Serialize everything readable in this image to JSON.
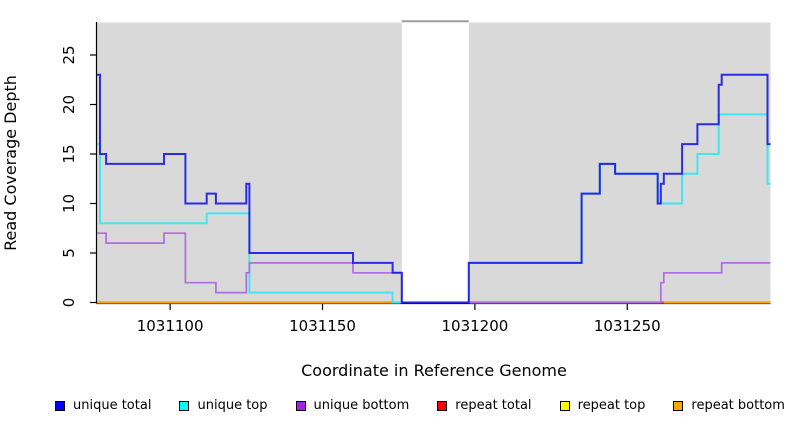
{
  "chart_data": {
    "type": "line",
    "subtype": "step-after-coverage-plot",
    "title": "",
    "xlabel": "Coordinate in Reference Genome",
    "ylabel": "Read Coverage Depth",
    "xlim": [
      1031076,
      1031297
    ],
    "ylim": [
      0,
      28.4
    ],
    "x_ticks": [
      1031100,
      1031150,
      1031200,
      1031250
    ],
    "x_tick_labels": [
      "1031100",
      "1031150",
      "1031200",
      "1031250"
    ],
    "y_ticks": [
      0,
      5,
      10,
      15,
      20,
      25
    ],
    "y_tick_labels": [
      "0",
      "5",
      "10",
      "15",
      "20",
      "25"
    ],
    "grid": false,
    "plot_bg_color": "#d9d9d9",
    "masked_region": {
      "x_start": 1031176,
      "x_end": 1031198,
      "fill": "#ffffff",
      "top_line_color": "#9c9c9c"
    },
    "series": [
      {
        "name": "unique total",
        "legend_color": "#0000ff",
        "line_color": "#1818e2",
        "width": 2,
        "points": [
          [
            1031076,
            23
          ],
          [
            1031077,
            15
          ],
          [
            1031079,
            14
          ],
          [
            1031098,
            15
          ],
          [
            1031105,
            10
          ],
          [
            1031112,
            11
          ],
          [
            1031115,
            10
          ],
          [
            1031125,
            12
          ],
          [
            1031126,
            5
          ],
          [
            1031160,
            4
          ],
          [
            1031173,
            3
          ],
          [
            1031176,
            0
          ],
          [
            1031198,
            4
          ],
          [
            1031235,
            11
          ],
          [
            1031241,
            14
          ],
          [
            1031246,
            13
          ],
          [
            1031260,
            10
          ],
          [
            1031261,
            12
          ],
          [
            1031262,
            13
          ],
          [
            1031268,
            16
          ],
          [
            1031273,
            18
          ],
          [
            1031280,
            22
          ],
          [
            1031281,
            23
          ],
          [
            1031296,
            16
          ]
        ]
      },
      {
        "name": "unique top",
        "legend_color": "#00ffff",
        "line_color": "#44e4f0",
        "width": 2,
        "points": [
          [
            1031076,
            16
          ],
          [
            1031077,
            8
          ],
          [
            1031112,
            9
          ],
          [
            1031126,
            1
          ],
          [
            1031173,
            0
          ],
          [
            1031198,
            4
          ],
          [
            1031235,
            11
          ],
          [
            1031241,
            14
          ],
          [
            1031246,
            13
          ],
          [
            1031260,
            10
          ],
          [
            1031268,
            13
          ],
          [
            1031273,
            15
          ],
          [
            1031280,
            19
          ],
          [
            1031296,
            12
          ]
        ]
      },
      {
        "name": "unique bottom",
        "legend_color": "#a020f0",
        "line_color": "#ae6de2",
        "width": 1.7,
        "points": [
          [
            1031076,
            7
          ],
          [
            1031079,
            6
          ],
          [
            1031098,
            7
          ],
          [
            1031105,
            2
          ],
          [
            1031115,
            1
          ],
          [
            1031125,
            3
          ],
          [
            1031126,
            4
          ],
          [
            1031160,
            3
          ],
          [
            1031176,
            0
          ],
          [
            1031261,
            2
          ],
          [
            1031262,
            3
          ],
          [
            1031281,
            4
          ]
        ]
      },
      {
        "name": "repeat total",
        "legend_color": "#ff0000",
        "line_color": "#d14b6e",
        "width": 2,
        "points": [
          [
            1031076,
            0
          ]
        ],
        "note": "constant 0; visible only between masked region end and 1031262"
      },
      {
        "name": "repeat top",
        "legend_color": "#ffff00",
        "line_color": "#ffff00",
        "width": 2,
        "points": [
          [
            1031076,
            0
          ]
        ],
        "note": "constant 0; hidden beneath other zero lines"
      },
      {
        "name": "repeat bottom",
        "legend_color": "#ffa500",
        "line_color": "#ff9d00",
        "width": 2.2,
        "points": [
          [
            1031076,
            0
          ]
        ],
        "note": "constant 0"
      }
    ],
    "zero_line_segments": [
      {
        "from": 1031076,
        "to": 1031176,
        "color": "#ff9d00",
        "series": "repeat bottom"
      },
      {
        "from": 1031198,
        "to": 1031262,
        "color": "#d14b6e",
        "series": "repeat total"
      },
      {
        "from": 1031262,
        "to": 1031297,
        "color": "#ff9d00",
        "series": "repeat bottom"
      }
    ],
    "legend": [
      {
        "label": "unique total",
        "color": "#0000ff"
      },
      {
        "label": "unique top",
        "color": "#00ffff"
      },
      {
        "label": "unique bottom",
        "color": "#a020f0"
      },
      {
        "label": "repeat total",
        "color": "#ff0000"
      },
      {
        "label": "repeat top",
        "color": "#ffff00"
      },
      {
        "label": "repeat bottom",
        "color": "#ffa500"
      }
    ],
    "legend_position": "bottom",
    "axis_color": "#000000"
  }
}
